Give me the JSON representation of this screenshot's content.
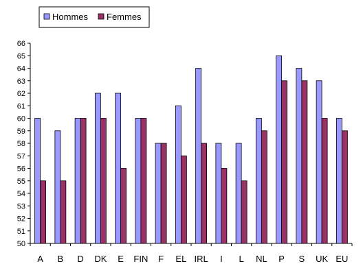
{
  "chart_data": {
    "type": "bar",
    "title": "",
    "xlabel": "",
    "ylabel": "",
    "ylim": [
      50,
      66
    ],
    "yticks": [
      50,
      51,
      52,
      53,
      54,
      55,
      56,
      57,
      58,
      59,
      60,
      61,
      62,
      63,
      64,
      65,
      66
    ],
    "grid": false,
    "legend_position": "top-left",
    "categories": [
      "A",
      "B",
      "D",
      "DK",
      "E",
      "FIN",
      "F",
      "EL",
      "IRL",
      "I",
      "L",
      "NL",
      "P",
      "S",
      "UK",
      "EU"
    ],
    "series": [
      {
        "name": "Hommes",
        "color": "#9999ff",
        "values": [
          60,
          59,
          60,
          62,
          62,
          60,
          58,
          61,
          64,
          58,
          58,
          60,
          65,
          64,
          63,
          60
        ]
      },
      {
        "name": "Femmes",
        "color": "#993366",
        "values": [
          55,
          55,
          60,
          60,
          56,
          60,
          58,
          57,
          58,
          56,
          55,
          59,
          63,
          63,
          60,
          59
        ]
      }
    ]
  }
}
